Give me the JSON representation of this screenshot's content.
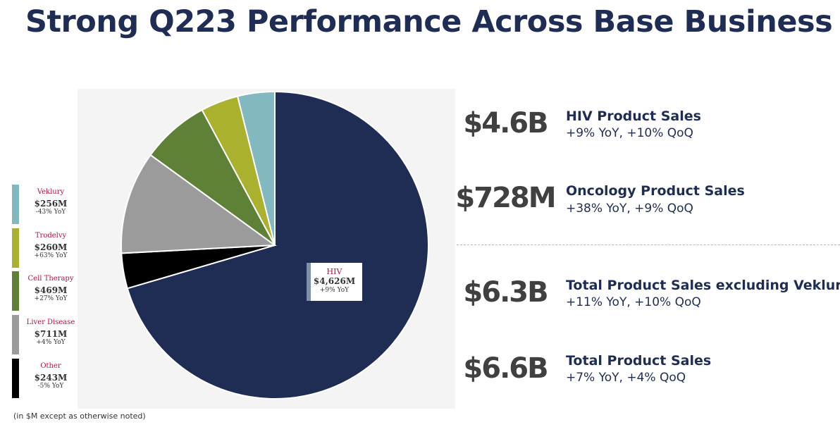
{
  "title": "Strong Q223 Performance Across Base Business",
  "chart_data": {
    "type": "pie",
    "unit_note": "(in $M except as otherwise noted)",
    "slices": [
      {
        "name": "HIV",
        "value": 4626,
        "value_label": "$4,626M",
        "yoy": "+9% YoY",
        "color": "#1f2d54"
      },
      {
        "name": "Other",
        "value": 243,
        "value_label": "$243M",
        "yoy": "-5% YoY",
        "color": "#000000"
      },
      {
        "name": "Liver Disease",
        "value": 711,
        "value_label": "$711M",
        "yoy": "+4% YoY",
        "color": "#9b9b9b"
      },
      {
        "name": "Cell Therapy",
        "value": 469,
        "value_label": "$469M",
        "yoy": "+27% YoY",
        "color": "#5e8137"
      },
      {
        "name": "Tradelvy",
        "value": 260,
        "value_label": "$260M",
        "yoy": "+63% YoY",
        "color": "#a9b12f"
      },
      {
        "name": "Veklury",
        "value": 256,
        "value_label": "$256M",
        "yoy": "-43% YoY",
        "color": "#82b8bf"
      }
    ],
    "legend": [
      {
        "name": "Veklury",
        "value_label": "$256M",
        "yoy": "-43% YoY",
        "color": "#82b8bf"
      },
      {
        "name": "Trodelvy",
        "value_label": "$260M",
        "yoy": "+63% YoY",
        "color": "#a9b12f"
      },
      {
        "name": "Cell Therapy",
        "value_label": "$469M",
        "yoy": "+27% YoY",
        "color": "#5e8137"
      },
      {
        "name": "Liver Disease",
        "value_label": "$711M",
        "yoy": "+4% YoY",
        "color": "#9b9b9b"
      },
      {
        "name": "Other",
        "value_label": "$243M",
        "yoy": "-5% YoY",
        "color": "#000000"
      }
    ]
  },
  "metrics": [
    {
      "big": "$4.6B",
      "title": "HIV Product Sales",
      "sub": "+9% YoY, +10% QoQ"
    },
    {
      "big": "$728M",
      "title": "Oncology Product Sales",
      "sub": "+38% YoY, +9% QoQ"
    },
    {
      "big": "$6.3B",
      "title": "Total Product Sales excluding Veklury",
      "sub": "+11% YoY, +10% QoQ"
    },
    {
      "big": "$6.6B",
      "title": "Total Product Sales",
      "sub": "+7% YoY, +4% QoQ"
    }
  ]
}
